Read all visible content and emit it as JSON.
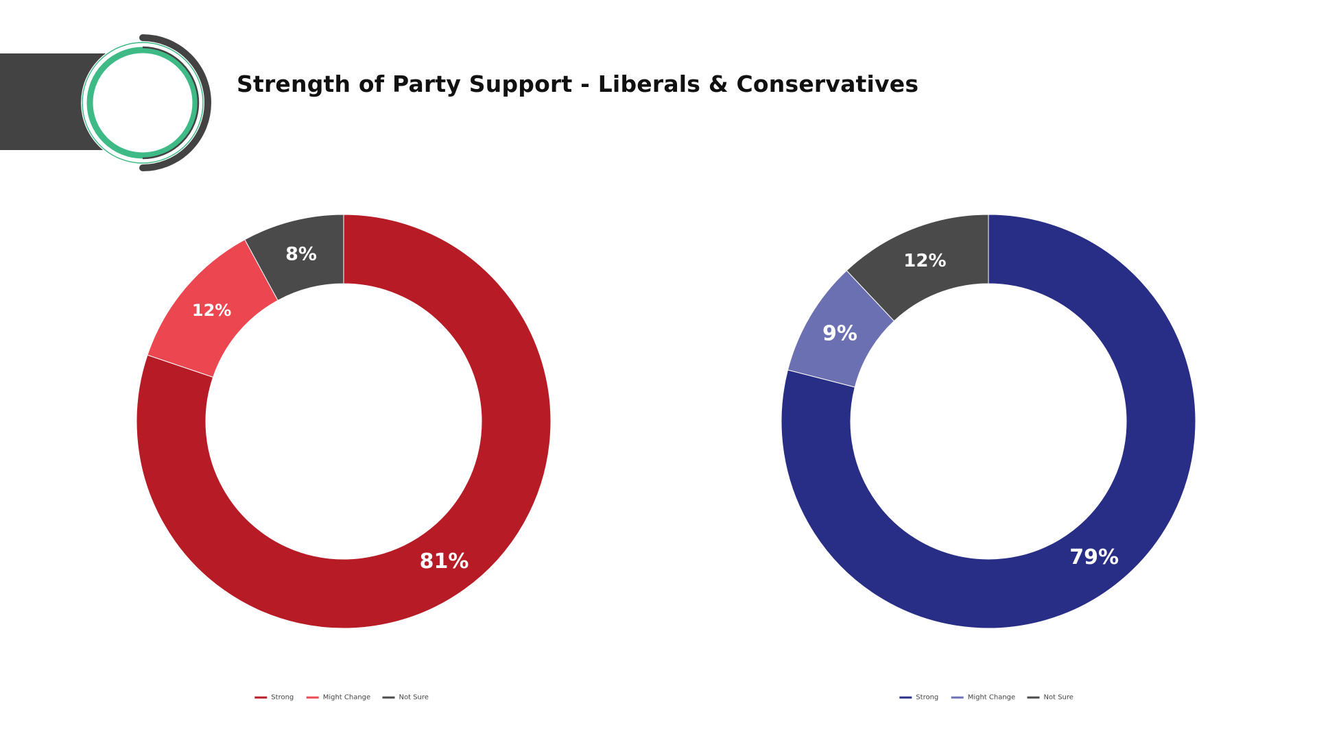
{
  "title": "Strength of Party Support - Liberals & Conservatives",
  "colors": {
    "header_band": "#434343",
    "logo_green": "#3dba86",
    "logo_dark": "#434343"
  },
  "chart_data": [
    {
      "type": "pie",
      "donut": true,
      "name": "Liberals",
      "categories": [
        "Strong",
        "Might Change",
        "Not Sure"
      ],
      "values": [
        81,
        12,
        8
      ],
      "labels": [
        "81%",
        "12%",
        "8%"
      ],
      "colors": [
        "#b71c26",
        "#ec4750",
        "#4a4a4a"
      ],
      "legend": [
        "Strong",
        "Might Change",
        "Not Sure"
      ],
      "legend_position": "bottom"
    },
    {
      "type": "pie",
      "donut": true,
      "name": "Conservatives",
      "categories": [
        "Strong",
        "Might Change",
        "Not Sure"
      ],
      "values": [
        79,
        9,
        12
      ],
      "labels": [
        "79%",
        "9%",
        "12%"
      ],
      "colors": [
        "#282e85",
        "#6b70b3",
        "#4a4a4a"
      ],
      "legend": [
        "Strong",
        "Might Change",
        "Not Sure"
      ],
      "legend_position": "bottom"
    }
  ]
}
